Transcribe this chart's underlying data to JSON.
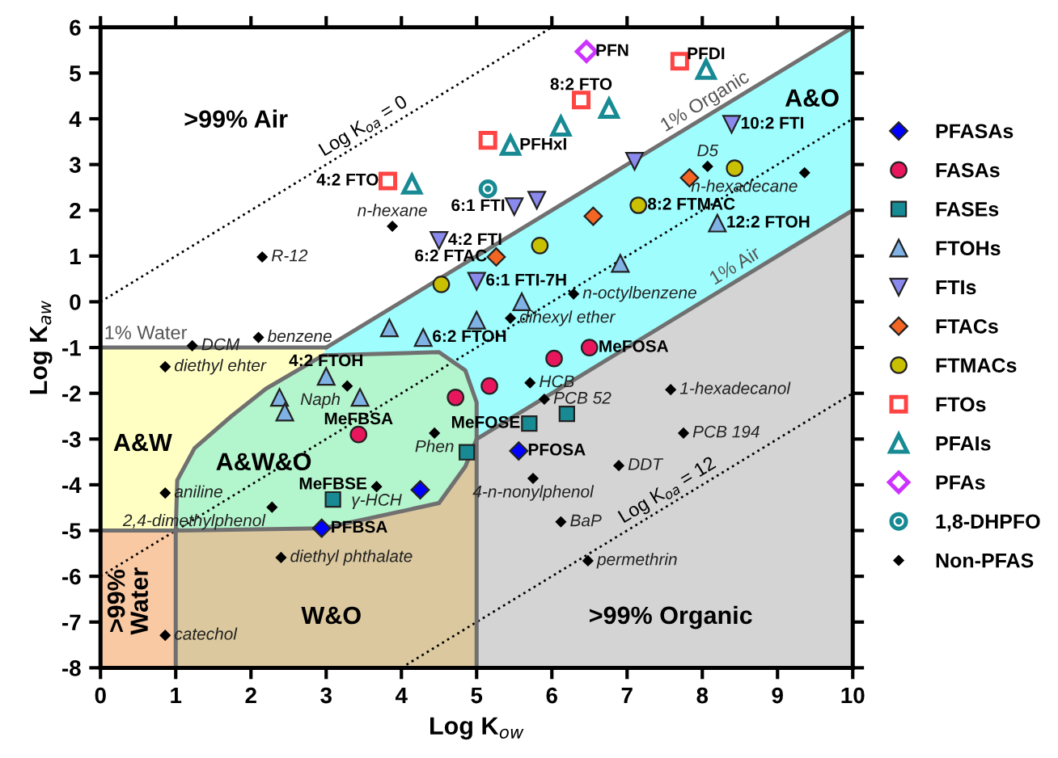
{
  "chart_data": {
    "type": "scatter",
    "xlabel": "Log K$_{ow}$",
    "ylabel": "Log K$_{aw}$",
    "xlim": [
      0,
      10
    ],
    "ylim": [
      -8,
      6
    ],
    "xticks": [
      0,
      1,
      2,
      3,
      4,
      5,
      6,
      7,
      8,
      9,
      10
    ],
    "yticks": [
      -8,
      -7,
      -6,
      -5,
      -4,
      -3,
      -2,
      -1,
      0,
      1,
      2,
      3,
      4,
      5,
      6
    ],
    "grid": false,
    "legend": "right",
    "series": [
      {
        "type": "line",
        "name": "Log K$_{oa}$ = 0",
        "color": "#000000",
        "line_style": "dotted",
        "x": [
          0,
          3.56,
          6
        ],
        "values": [
          0,
          3.56,
          6
        ]
      },
      {
        "type": "line",
        "color": "#000000",
        "line_style": "dotted",
        "x": [
          0,
          10
        ],
        "values": [
          -6,
          4
        ]
      },
      {
        "type": "line",
        "name": "Log K$_{oa}$ = 12",
        "color": "#000000",
        "line_style": "dotted",
        "x": [
          4,
          7.6,
          10
        ],
        "values": [
          -8,
          -4.4,
          -2
        ]
      },
      {
        "type": "line",
        "name": "1% Organic",
        "color": "#707070",
        "line_style": "solid",
        "x": [
          3,
          8.1,
          10
        ],
        "values": [
          -1,
          4.1,
          6
        ]
      },
      {
        "type": "line",
        "name": "1% Air",
        "color": "#707070",
        "line_style": "solid",
        "x": [
          5,
          8.5,
          10
        ],
        "values": [
          -3,
          0.5,
          2
        ]
      },
      {
        "type": "line",
        "name": "1% Water",
        "color": "#707070",
        "line_style": "solid",
        "x": [
          0,
          0.6,
          3
        ],
        "values": [
          -1,
          -1,
          -1
        ]
      },
      {
        "type": "line",
        "color": "#707070",
        "line_style": "solid",
        "x": [
          1,
          1,
          1.02,
          1.25,
          1.74,
          2.2,
          2.96,
          4.5,
          4.85,
          5,
          5,
          5
        ],
        "values": [
          -8,
          -5,
          -3.9,
          -3.2,
          -2.5,
          -1.9,
          -1.17,
          -1.1,
          -1.5,
          -2.2,
          -3,
          -8
        ]
      },
      {
        "type": "line",
        "color": "#707070",
        "line_style": "solid",
        "x": [
          0,
          1,
          2.96,
          4.5,
          4.85,
          5
        ],
        "values": [
          -5,
          -5,
          -4.95,
          -4.4,
          -3.6,
          -3
        ]
      },
      {
        "name": "PFASAs",
        "color": "#0000ff",
        "marker": "diamond",
        "x": [
          2.94,
          4.25,
          5.56
        ],
        "values": [
          -4.95,
          -4.11,
          -3.26
        ]
      },
      {
        "name": "FASAs",
        "color": "#e8175d",
        "marker": "circle",
        "x": [
          3.43,
          4.72,
          5.17,
          6.03,
          6.5
        ],
        "values": [
          -2.9,
          -2.09,
          -1.84,
          -1.24,
          -1.0
        ]
      },
      {
        "name": "FASEs",
        "color": "#178a94",
        "marker": "square",
        "x": [
          3.09,
          4.87,
          5.7,
          6.2
        ],
        "values": [
          -4.32,
          -3.29,
          -2.66,
          -2.45
        ]
      },
      {
        "name": "FTOHs",
        "color": "#7fb2e5",
        "marker": "triangle",
        "x": [
          2.38,
          2.45,
          3.0,
          3.45,
          3.84,
          4.29,
          5.0,
          5.6,
          6.91,
          8.2
        ],
        "values": [
          -2.09,
          -2.41,
          -1.63,
          -2.09,
          -0.57,
          -0.78,
          -0.4,
          0.0,
          0.84,
          1.72
        ]
      },
      {
        "name": "FTIs",
        "color": "#8a8aee",
        "marker": "triangle-down",
        "x": [
          4.5,
          5.0,
          5.5,
          5.8,
          7.1,
          8.39
        ],
        "values": [
          1.34,
          0.45,
          2.08,
          2.22,
          3.07,
          3.88
        ]
      },
      {
        "name": "FTACs",
        "color": "#f26522",
        "marker": "diamond",
        "x": [
          5.26,
          6.55,
          7.83
        ],
        "values": [
          0.98,
          1.87,
          2.71
        ]
      },
      {
        "name": "FTMACs",
        "color": "#c8c000",
        "marker": "circle",
        "x": [
          4.53,
          5.84,
          7.15,
          8.43
        ],
        "values": [
          0.38,
          1.23,
          2.11,
          2.92
        ]
      },
      {
        "name": "FTOs",
        "color": "#ff4444",
        "marker": "square-open",
        "x": [
          3.82,
          5.15,
          6.39,
          7.7
        ],
        "values": [
          2.64,
          3.53,
          4.41,
          5.26
        ]
      },
      {
        "name": "PFAIs",
        "color": "#178a94",
        "marker": "triangle-open",
        "x": [
          4.14,
          5.45,
          6.12,
          6.76,
          8.05
        ],
        "values": [
          2.57,
          3.42,
          3.84,
          4.23,
          5.08
        ]
      },
      {
        "name": "PFAs",
        "color": "#cc33ff",
        "marker": "diamond-open",
        "x": [
          6.46
        ],
        "values": [
          5.47
        ]
      },
      {
        "name": "1,8-DHPFO",
        "color": "#178a94",
        "marker": "circle-dot",
        "x": [
          5.15
        ],
        "values": [
          2.47
        ]
      },
      {
        "name": "Non-PFAS",
        "color": "#000000",
        "marker": "diamond",
        "x": [
          2.15,
          3.88,
          5.45,
          2.1,
          1.22,
          8.07,
          9.36,
          6.29,
          5.71,
          5.9,
          7.58,
          7.75,
          6.89,
          5.75,
          6.12,
          6.48,
          0.86,
          3.28,
          4.44,
          3.67,
          0.86,
          2.28,
          2.4,
          0.86
        ],
        "values": [
          0.98,
          1.65,
          -0.36,
          -0.78,
          -0.96,
          2.96,
          2.82,
          0.17,
          -1.77,
          -2.13,
          -1.92,
          -2.87,
          -3.58,
          -3.86,
          -4.81,
          -5.66,
          -1.42,
          -1.84,
          -2.87,
          -4.04,
          -4.18,
          -4.49,
          -5.59,
          -7.29
        ]
      }
    ],
    "annotations": [
      ">99% Air",
      "A&O",
      "A&W",
      "A&W&O",
      "W&O",
      ">99% Organic",
      ">99%\nWater",
      {
        "text": "PFN",
        "x": 6.46,
        "y": 5.47
      },
      {
        "text": "PFDI",
        "x": 8.05,
        "y": 5.08
      },
      {
        "text": "8:2 FTO",
        "x": 6.39,
        "y": 4.41
      },
      {
        "text": "4:2 FTO",
        "x": 3.82,
        "y": 2.64
      },
      {
        "text": "PFHxI",
        "x": 5.45,
        "y": 3.42
      },
      {
        "text": "10:2 FTI",
        "x": 8.39,
        "y": 3.88
      },
      {
        "text": "6:1 FTI",
        "x": 5.5,
        "y": 2.08
      },
      {
        "text": "8:2 FTMAC",
        "x": 7.15,
        "y": 2.11
      },
      {
        "text": "12:2 FTOH",
        "x": 8.2,
        "y": 1.72
      },
      {
        "text": "4:2 FTI",
        "x": 4.5,
        "y": 1.34
      },
      {
        "text": "6:2 FTAC",
        "x": 5.26,
        "y": 0.98
      },
      {
        "text": "6:1 FTI-7H",
        "x": 5.0,
        "y": 0.45
      },
      {
        "text": "6:2 FTOH",
        "x": 4.29,
        "y": -0.78
      },
      {
        "text": "4:2 FTOH",
        "x": 3.0,
        "y": -1.63
      },
      {
        "text": "MeFOSA",
        "x": 6.5,
        "y": -1.0
      },
      {
        "text": "MeFOSE",
        "x": 5.7,
        "y": -2.66
      },
      {
        "text": "PFOSA",
        "x": 5.56,
        "y": -3.26
      },
      {
        "text": "MeFBSA",
        "x": 3.43,
        "y": -2.9
      },
      {
        "text": "MeFBSE",
        "x": 3.09,
        "y": -4.32
      },
      {
        "text": "PFBSA",
        "x": 2.94,
        "y": -4.95
      },
      {
        "text": "R-12",
        "x": 2.15,
        "y": 0.98
      },
      {
        "text": "n-hexane",
        "x": 3.88,
        "y": 1.65
      },
      {
        "text": "D5",
        "x": 8.07,
        "y": 2.96
      },
      {
        "text": "n-hexadecane",
        "x": 9.36,
        "y": 2.82
      },
      {
        "text": "n-octylbenzene",
        "x": 6.29,
        "y": 0.17
      },
      {
        "text": "dihexyl ether",
        "x": 5.45,
        "y": -0.36
      },
      {
        "text": "benzene",
        "x": 2.1,
        "y": -0.78
      },
      {
        "text": "DCM",
        "x": 1.22,
        "y": -0.96
      },
      {
        "text": "diethyl ehter",
        "x": 0.86,
        "y": -1.42
      },
      {
        "text": "Naph",
        "x": 3.28,
        "y": -1.84
      },
      {
        "text": "HCB",
        "x": 5.71,
        "y": -1.77
      },
      {
        "text": "PCB 52",
        "x": 5.9,
        "y": -2.13
      },
      {
        "text": "Phen",
        "x": 4.44,
        "y": -2.87
      },
      {
        "text": "1-hexadecanol",
        "x": 7.58,
        "y": -1.92
      },
      {
        "text": "PCB 194",
        "x": 7.75,
        "y": -2.87
      },
      {
        "text": "γ-HCH",
        "x": 3.67,
        "y": -4.04
      },
      {
        "text": "DDT",
        "x": 6.89,
        "y": -3.58
      },
      {
        "text": "4-n-nonylphenol",
        "x": 5.75,
        "y": -3.86
      },
      {
        "text": "BaP",
        "x": 6.12,
        "y": -4.81
      },
      {
        "text": "aniline",
        "x": 0.86,
        "y": -4.18
      },
      {
        "text": "2,4-dimethylphenol",
        "x": 2.28,
        "y": -4.49
      },
      {
        "text": "permethrin",
        "x": 6.48,
        "y": -5.66
      },
      {
        "text": "diethyl phthalate",
        "x": 2.4,
        "y": -5.59
      },
      {
        "text": "catechol",
        "x": 0.86,
        "y": -7.29
      }
    ]
  }
}
